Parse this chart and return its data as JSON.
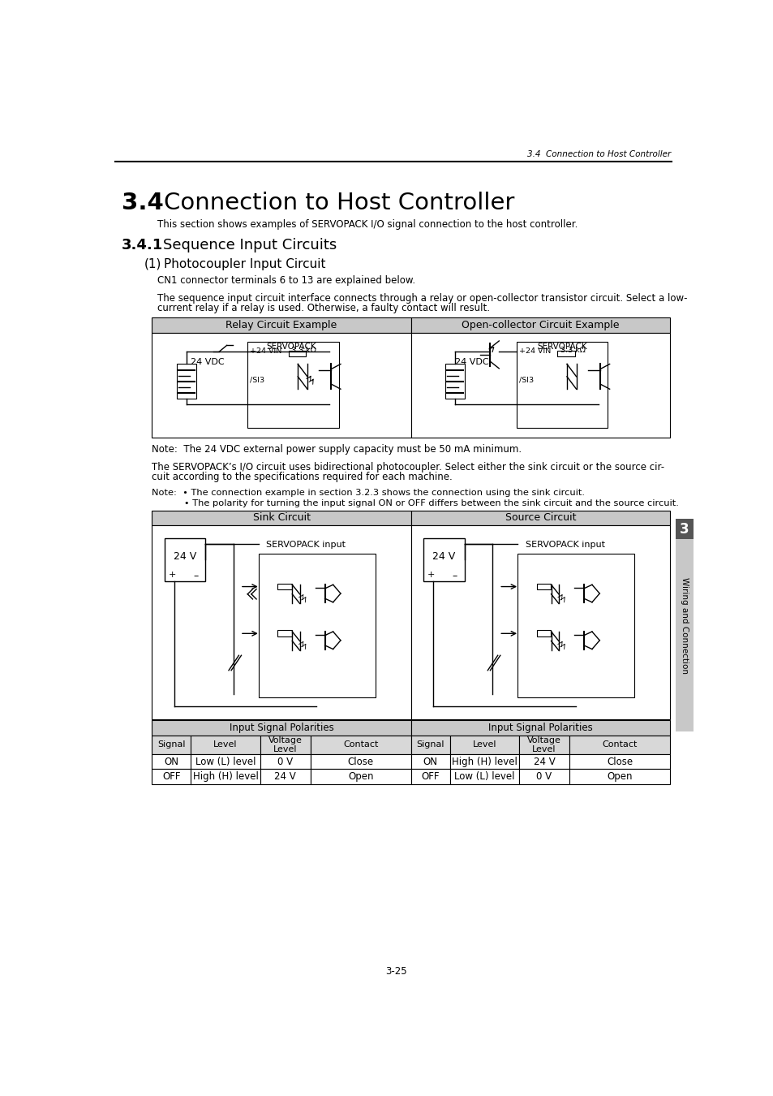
{
  "page_header": "3.4  Connection to Host Controller",
  "section_num": "3.4",
  "section_title": "Connection to Host Controller",
  "section_desc": "This section shows examples of SERVOPACK I/O signal connection to the host controller.",
  "subsection_num": "3.4.1",
  "subsection_title": "Sequence Input Circuits",
  "sub_sub_num": "(1)",
  "sub_sub_title": "Photocoupler Input Circuit",
  "cn1_text": "CN1 connector terminals 6 to 13 are explained below.",
  "para1_line1": "The sequence input circuit interface connects through a relay or open-collector transistor circuit. Select a low-",
  "para1_line2": "current relay if a relay is used. Otherwise, a faulty contact will result.",
  "note1": "Note:  The 24 VDC external power supply capacity must be 50 mA minimum.",
  "para2_line1": "The SERVOPACK’s I/O circuit uses bidirectional photocoupler. Select either the sink circuit or the source cir-",
  "para2_line2": "cuit according to the specifications required for each machine.",
  "note2_line1": "Note:  • The connection example in section 3.2.3 shows the connection using the sink circuit.",
  "note2_line2": "           • The polarity for turning the input signal ON or OFF differs between the sink circuit and the source circuit.",
  "table1_left_header": "Relay Circuit Example",
  "table1_right_header": "Open-collector Circuit Example",
  "table2_left_header": "Sink Circuit",
  "table2_right_header": "Source Circuit",
  "signal_table_headers": [
    "Signal",
    "Level",
    "Voltage\nLevel",
    "Contact"
  ],
  "sink_data": [
    [
      "ON",
      "Low (L) level",
      "0 V",
      "Close"
    ],
    [
      "OFF",
      "High (H) level",
      "24 V",
      "Open"
    ]
  ],
  "source_data": [
    [
      "ON",
      "High (H) level",
      "24 V",
      "Close"
    ],
    [
      "OFF",
      "Low (L) level",
      "0 V",
      "Open"
    ]
  ],
  "input_signal_polarities": "Input Signal Polarities",
  "sidebar_text": "Wiring and Connection",
  "sidebar_num": "3",
  "page_num": "3-25",
  "bg_color": "#ffffff",
  "gray_header": "#c8c8c8",
  "gray_subheader": "#d8d8d8"
}
